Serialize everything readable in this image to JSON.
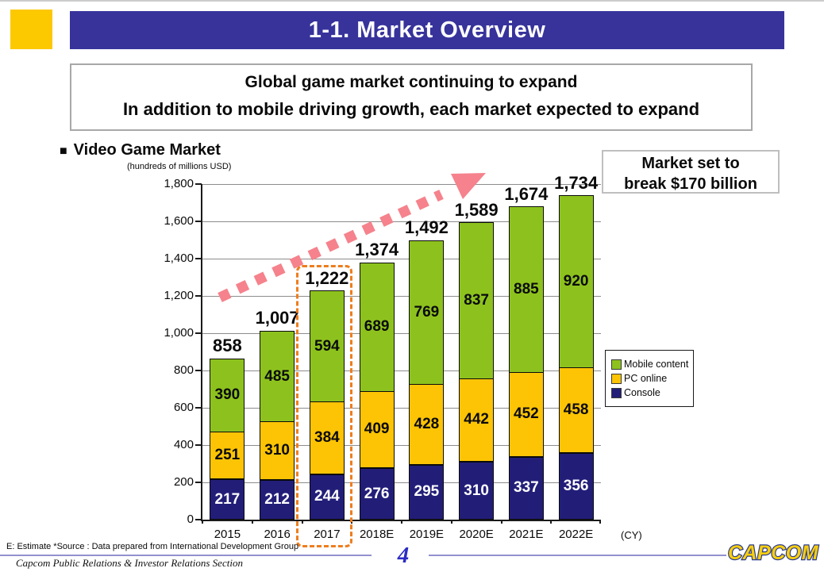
{
  "slide": {
    "title": "1-1. Market Overview",
    "subtitle_line1": "Global game market continuing to expand",
    "subtitle_line2": "In addition to mobile driving growth, each market expected to expand",
    "bullet": "■",
    "section_heading": "Video Game Market",
    "callout": {
      "line1": "Market set to",
      "line2": "break $170 billion"
    },
    "footer": {
      "source_note": "E: Estimate *Source : Data prepared from International Development Group",
      "credit": "Capcom Public Relations & Investor Relations Section",
      "page_number": "4",
      "logo_text": "CAPCOM"
    }
  },
  "chart_data": {
    "type": "bar",
    "stacked": true,
    "title": "Video Game Market",
    "unit_label": "(hundreds of millions USD)",
    "cy_label": "(CY)",
    "categories": [
      "2015",
      "2016",
      "2017",
      "2018E",
      "2019E",
      "2020E",
      "2021E",
      "2022E"
    ],
    "series": [
      {
        "name": "Console",
        "color": "#221E78",
        "label_color": "#ffffff",
        "values": [
          217,
          212,
          244,
          276,
          295,
          310,
          337,
          356
        ]
      },
      {
        "name": "PC online",
        "color": "#FCC405",
        "label_color": "#0a0a0a",
        "values": [
          251,
          310,
          384,
          409,
          428,
          442,
          452,
          458
        ]
      },
      {
        "name": "Mobile content",
        "color": "#8DC21E",
        "label_color": "#0a0a0a",
        "values": [
          390,
          485,
          594,
          689,
          769,
          837,
          885,
          920
        ]
      }
    ],
    "totals": [
      "858",
      "1,007",
      "1,222",
      "1,374",
      "1,492",
      "1,589",
      "1,674",
      "1,734"
    ],
    "ylim": [
      0,
      1800
    ],
    "ytick_step": 200,
    "ytick_labels": [
      "0",
      "200",
      "400",
      "600",
      "800",
      "1,000",
      "1,200",
      "1,400",
      "1,600",
      "1,800"
    ],
    "legend_order": [
      "Mobile content",
      "PC online",
      "Console"
    ],
    "legend_position": "right",
    "grid": true,
    "highlight_category": "2017",
    "trend_arrow_color": "#F5828C",
    "highlight_color": "#EE7D1D"
  }
}
